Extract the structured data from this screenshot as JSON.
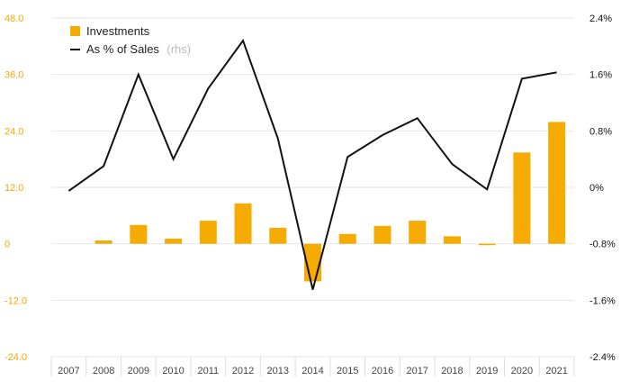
{
  "chart_data": {
    "type": "bar",
    "categories": [
      "2007",
      "2008",
      "2009",
      "2010",
      "2011",
      "2012",
      "2013",
      "2014",
      "2015",
      "2016",
      "2017",
      "2018",
      "2019",
      "2020",
      "2021"
    ],
    "series": [
      {
        "name": "Investments",
        "type": "bar",
        "axis": "left",
        "color": "#f5ab00",
        "values": [
          0,
          0.7,
          4.0,
          1.1,
          4.9,
          8.6,
          3.4,
          -8.0,
          2.1,
          3.8,
          4.9,
          1.6,
          -0.3,
          19.4,
          25.9
        ]
      },
      {
        "name": "As % of Sales",
        "type": "line",
        "axis": "right",
        "color": "#111111",
        "values": [
          -0.05,
          0.3,
          1.6,
          0.4,
          1.4,
          2.08,
          0.69,
          -1.45,
          0.43,
          0.74,
          0.98,
          0.33,
          -0.03,
          1.54,
          1.63
        ]
      }
    ],
    "left_axis": {
      "min": -24,
      "max": 48,
      "ticks": [
        -24,
        -12,
        0,
        12,
        24,
        36,
        48
      ],
      "tick_labels": [
        "-24.0",
        "-12.0",
        "0",
        "12.0",
        "24.0",
        "36.0",
        "48.0"
      ],
      "color": "#f5a800"
    },
    "right_axis": {
      "min": -2.4,
      "max": 2.4,
      "tick_labels": [
        "-2.4%",
        "-1.6%",
        "-0.8%",
        "0%",
        "0.8%",
        "1.6%",
        "2.4%"
      ],
      "color": "#111111"
    },
    "legend": {
      "position": "top-left",
      "items": [
        {
          "label": "Investments",
          "suffix": ""
        },
        {
          "label": "As % of Sales",
          "suffix": "(rhs)"
        }
      ]
    },
    "grid": true,
    "title": "",
    "xlabel": "",
    "ylabel": ""
  }
}
